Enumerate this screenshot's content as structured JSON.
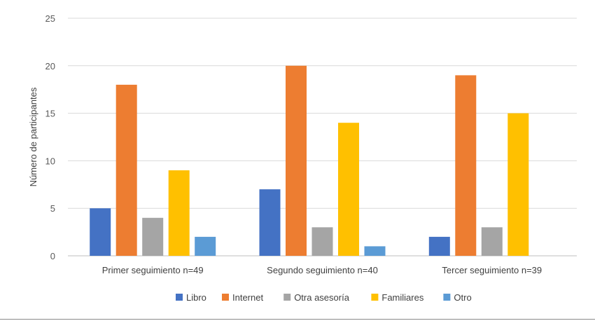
{
  "chart_data": {
    "type": "bar",
    "title": "",
    "xlabel": "",
    "ylabel": "Número de participantes",
    "ylim": [
      0,
      25
    ],
    "yticks": [
      0,
      5,
      10,
      15,
      20,
      25
    ],
    "grid": true,
    "legend_position": "bottom",
    "categories": [
      "Primer seguimiento n=49",
      "Segundo seguimiento n=40",
      "Tercer seguimiento n=39"
    ],
    "series": [
      {
        "name": "Libro",
        "color": "#4472c4",
        "values": [
          5,
          7,
          2
        ]
      },
      {
        "name": "Internet",
        "color": "#ed7d31",
        "values": [
          18,
          20,
          19
        ]
      },
      {
        "name": "Otra asesoría",
        "color": "#a5a5a5",
        "values": [
          4,
          3,
          3
        ]
      },
      {
        "name": "Familiares",
        "color": "#ffc000",
        "values": [
          9,
          14,
          15
        ]
      },
      {
        "name": "Otro",
        "color": "#5b9bd5",
        "values": [
          2,
          1,
          0
        ]
      }
    ]
  }
}
